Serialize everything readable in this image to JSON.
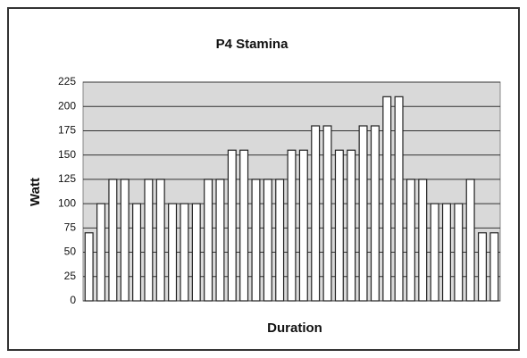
{
  "chart_data": {
    "type": "bar",
    "title": "P4 Stamina",
    "x_label": "Duration",
    "y_label": "Watt",
    "categories": [
      null,
      null,
      null,
      null,
      null,
      null,
      null,
      null,
      null,
      null,
      null,
      null,
      null,
      null,
      null,
      null,
      null,
      null,
      null,
      null,
      null,
      null,
      null,
      null,
      null,
      null,
      null,
      null,
      null,
      null,
      null,
      null,
      null,
      null,
      null
    ],
    "values": [
      70,
      100,
      125,
      125,
      100,
      125,
      125,
      100,
      100,
      100,
      125,
      125,
      155,
      155,
      125,
      125,
      125,
      155,
      155,
      180,
      180,
      155,
      155,
      180,
      180,
      210,
      210,
      125,
      125,
      100,
      100,
      100,
      125,
      70,
      70
    ],
    "color": "#ffffff",
    "ylim": [
      0,
      225
    ],
    "yticks": [
      0,
      25,
      50,
      75,
      100,
      125,
      150,
      175,
      200,
      225
    ],
    "grid": true
  }
}
